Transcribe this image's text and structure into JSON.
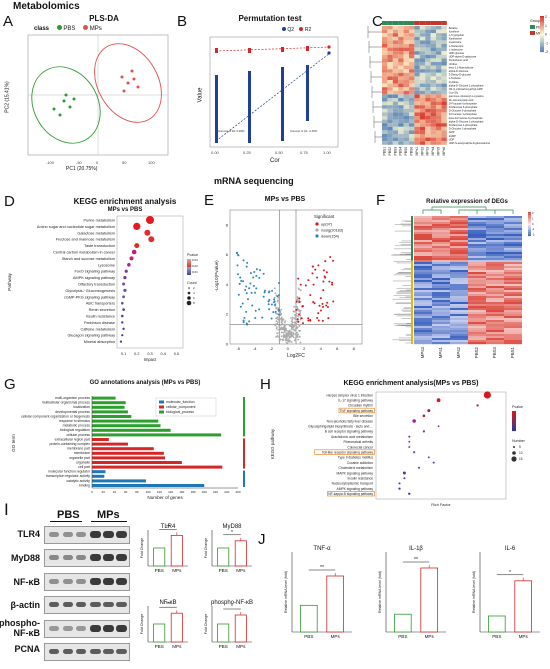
{
  "header": "Metabolomics",
  "mid_header": "mRNA sequencing",
  "letters": {
    "A": "A",
    "B": "B",
    "C": "C",
    "D": "D",
    "E": "E",
    "F": "F",
    "G": "G",
    "H": "H",
    "I": "I",
    "J": "J"
  },
  "panelA": {
    "title": "PLS-DA",
    "legend_class": "class",
    "legend_pbs": "PBS",
    "legend_mps": "MPs",
    "xlabel": "PC1 (20.75%)",
    "ylabel": "PC2 (15.41%)"
  },
  "panelB": {
    "title": "Permutation test",
    "legend_q2": "Q2",
    "legend_r2": "R2",
    "xlabel": "Cor",
    "ylabel": "Value",
    "xticks": [
      "0.00",
      "0.25",
      "0.50",
      "0.75",
      "1.00"
    ],
    "intercept_r2": "Intercept of R2: 0.9084",
    "intercept_q2": "Intercept of Q2: -0.4637"
  },
  "panelC": {
    "metabolites": [
      "Betaine",
      "Xanthine",
      "L-Tryptophan",
      "Xanthosine",
      "Guanosine",
      "L-Norleucine",
      "L-Isoleucine",
      "UDP-glucose",
      "UDP-alpha-D-galactose",
      "Pantothenic acid",
      "Uridine",
      "beta-1,2-Mannobiose",
      "alpha-D-Glucose",
      "2-Deoxy-D-glucose",
      "L-Sorbose",
      "D-Allose",
      "alpha-D-Glucose 1-phosphate",
      "N6-(1,2-Dicarboxyethyl)-AMP",
      "Cyc-Gly",
      "gamma-L-Glutamyl-L-cysteine",
      "DL-Homocysteic acid",
      "D-Fructose 6-phosphate",
      "D-Mannose 6-phosphate",
      "D-Glucose 6-phosphate",
      "D-Fructose 1-phosphate",
      "beta-D-Fructose 6-phosphate",
      "alpha-D-Glucose 1-phosphate",
      "D-Mannose 1-phosphate",
      "D-Glucose 1-phosphate",
      "AMP",
      "dAMP",
      "UDP",
      "UDP-N-acetyl-alpha-D-glucosamine"
    ],
    "samples": [
      "PBS1",
      "PBS2",
      "PBS3",
      "PBS4",
      "PBS5",
      "PBS6",
      "MPs1",
      "MPs2",
      "MPs3",
      "MPs4",
      "MPs5",
      "MPs6"
    ],
    "legend_group": "Group",
    "legend_pbs": "PBS",
    "legend_mps": "MPs",
    "scale": [
      "2",
      "1",
      "0",
      "-1",
      "-2"
    ],
    "colors": {
      "pbs": "#2e8b57",
      "mps": "#c0392b",
      "high": "#d73027",
      "mid": "#fffbd0",
      "low": "#4575b4"
    }
  },
  "panelD": {
    "title": "KEGG enrichment analysis",
    "subtitle": "MPs vs PBS",
    "ylabel": "Pathway",
    "xlabel": "Impact",
    "xticks": [
      "0.1",
      "0.2",
      "0.3",
      "0.4",
      "0.5"
    ],
    "pathways": [
      "Purine metabolism",
      "Amino sugar and nucleotide sugar metabolism",
      "Galactose metabolism",
      "Fructose and mannose metabolism",
      "Taste transduction",
      "Central carbon metabolism in cancer",
      "Starch and sucrose metabolism",
      "Lysosome",
      "FoxO signaling pathway",
      "AMPK signaling pathway",
      "Olfactory transduction",
      "Glycolysis / Gluconeogenesis",
      "cGMP-PKG signaling pathway",
      "ABC transporters",
      "Renin secretion",
      "Insulin resistance",
      "Parkinson disease",
      "Caffeine metabolism",
      "Glucagon signaling pathway",
      "Mineral absorption"
    ],
    "legend_pvalue": "Pvalue",
    "pvalue_ticks": [
      "0.03",
      "0.02",
      "0.01"
    ],
    "legend_count": "Count",
    "count_ticks": [
      "2",
      "4",
      "6",
      "8"
    ]
  },
  "panelE": {
    "title": "MPs vs PBS",
    "xlabel": "Log2FC",
    "ylabel": "-Log10(Pvalue)",
    "legend_title": "Significant",
    "legend_up": "up(97)",
    "legend_nosig": "nosig(20183)",
    "legend_down": "down(154)",
    "xticks": [
      "-6",
      "-4",
      "-2",
      "0",
      "2",
      "4",
      "6",
      "8"
    ],
    "yticks": [
      "0",
      "2",
      "4",
      "6",
      "8"
    ]
  },
  "panelF": {
    "title": "Relative expression of DEGs",
    "samples": [
      "MPs3",
      "MPs1",
      "MPs2",
      "PBS2",
      "PBS3",
      "PBS1"
    ],
    "scale": [
      "2",
      "1",
      "0",
      "-1",
      "-2"
    ]
  },
  "panelG": {
    "title": "GO annotations analysis (MPs vs PBS)",
    "ylabel": "GO term",
    "xlabel": "Number of genes",
    "xticks": [
      "0",
      "20",
      "40",
      "60",
      "80",
      "100",
      "120",
      "140",
      "160",
      "180",
      "200",
      "220",
      "240",
      "260"
    ],
    "legend": [
      "molecular_function",
      "cellular_component",
      "biological_process"
    ],
    "colors": {
      "molecular_function": "#1f77b4",
      "cellular_component": "#d62728",
      "biological_process": "#2ca02c"
    }
  },
  "panelH": {
    "title": "KEGG enrichment analysis(MPs vs PBS)",
    "ylabel": "KEGG pathway",
    "xlabel": "Rich Factor",
    "legend_pvalue": "Pvalue",
    "legend_number": "Number",
    "number_ticks": [
      "5",
      "10",
      "15"
    ],
    "pathways": [
      "Herpes simplex virus 1 infection",
      "IL-17 signaling pathway",
      "Circadian rhythm",
      "TNF signaling pathway",
      "Bile secretion",
      "Non-alcoholic fatty liver disease",
      "Glycosphingolipid biosynthesis - lacto and ...",
      "B cell receptor signaling pathway",
      "Arachidonic acid metabolism",
      "Rheumatoid arthritis",
      "Colorectal cancer",
      "Toll-like receptor signaling pathway",
      "Type II diabetes mellitus",
      "Cocaine addiction",
      "Cholesterol metabolism",
      "MAPK signaling pathway",
      "Insulin resistance",
      "Nucleocytoplasmic transport",
      "AMPK signaling pathway",
      "NF-kappa B signaling pathway"
    ],
    "boxed": [
      3,
      11,
      19
    ]
  },
  "panelI": {
    "blot_labels": [
      "TLR4",
      "MyD88",
      "NF-κB",
      "β-actin",
      "phospho-\nNF-κB",
      "PCNA"
    ],
    "group_pbs": "PBS",
    "group_mps": "MPs",
    "ylabel": "Fold Change",
    "charts": [
      {
        "title": "TLR4",
        "sig": "**",
        "pbs": 1.0,
        "mps": 1.7
      },
      {
        "title": "MyD88",
        "sig": "*",
        "pbs": 1.0,
        "mps": 1.4
      },
      {
        "title": "NF-κB",
        "sig": "**",
        "pbs": 1.0,
        "mps": 1.6
      },
      {
        "title": "phospho-NF-κB",
        "sig": "*",
        "pbs": 1.0,
        "mps": 1.5
      }
    ]
  },
  "panelJ": {
    "ylabel": "Relative mRNA level (fold)",
    "charts": [
      {
        "title": "TNF-α",
        "sig": "**",
        "pbs": 1.0,
        "mps": 2.1
      },
      {
        "title": "IL-1β",
        "sig": "**",
        "pbs": 1.0,
        "mps": 3.6
      },
      {
        "title": "IL-6",
        "sig": "*",
        "pbs": 1.0,
        "mps": 3.2
      }
    ],
    "xcats": [
      "PBS",
      "MPs"
    ]
  }
}
